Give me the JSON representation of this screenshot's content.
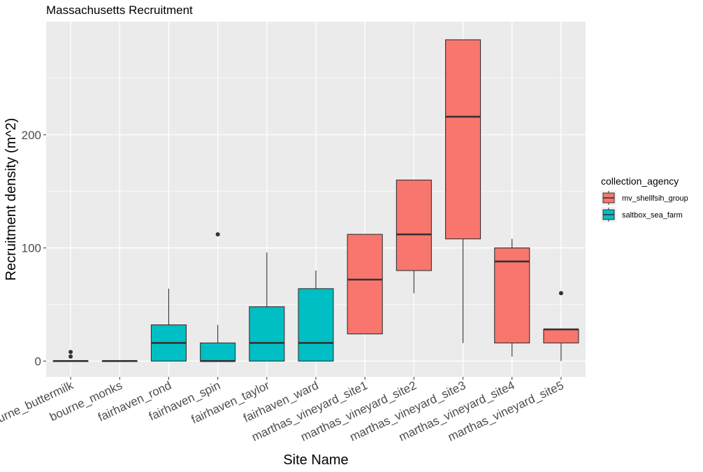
{
  "chart_data": {
    "type": "box",
    "title": "Massachusetts Recruitment",
    "xlabel": "Site Name",
    "ylabel": "Recruitment density (m^2)",
    "ylim": [
      -14,
      300
    ],
    "yticks": [
      0,
      100,
      200
    ],
    "grid": true,
    "legend": {
      "title": "collection_agency",
      "position": "right",
      "entries": [
        {
          "name": "mv_shellfsih_group",
          "color": "#F8766D"
        },
        {
          "name": "saltbox_sea_farm",
          "color": "#00BFC4"
        }
      ]
    },
    "categories": [
      "bourne_buttermilk",
      "bourne_monks",
      "fairhaven_rond",
      "fairhaven_spin",
      "fairhaven_taylor",
      "fairhaven_ward",
      "marthas_vineyard_site1",
      "marthas_vineyard_site2",
      "marthas_vineyard_site3",
      "marthas_vineyard_site4",
      "marthas_vineyard_site5"
    ],
    "boxes": [
      {
        "category": "bourne_buttermilk",
        "group": "saltbox_sea_farm",
        "min": 0,
        "q1": 0,
        "median": 0,
        "q3": 0,
        "max": 0,
        "outliers": [
          4,
          8
        ]
      },
      {
        "category": "bourne_monks",
        "group": "saltbox_sea_farm",
        "min": 0,
        "q1": 0,
        "median": 0,
        "q3": 0,
        "max": 0,
        "outliers": []
      },
      {
        "category": "fairhaven_rond",
        "group": "saltbox_sea_farm",
        "min": 0,
        "q1": 0,
        "median": 16,
        "q3": 32,
        "max": 64,
        "outliers": []
      },
      {
        "category": "fairhaven_spin",
        "group": "saltbox_sea_farm",
        "min": 0,
        "q1": 0,
        "median": 0,
        "q3": 16,
        "max": 32,
        "outliers": [
          112
        ]
      },
      {
        "category": "fairhaven_taylor",
        "group": "saltbox_sea_farm",
        "min": 0,
        "q1": 0,
        "median": 16,
        "q3": 48,
        "max": 96,
        "outliers": []
      },
      {
        "category": "fairhaven_ward",
        "group": "saltbox_sea_farm",
        "min": 0,
        "q1": 0,
        "median": 16,
        "q3": 64,
        "max": 80,
        "outliers": []
      },
      {
        "category": "marthas_vineyard_site1",
        "group": "mv_shellfsih_group",
        "min": 24,
        "q1": 24,
        "median": 72,
        "q3": 112,
        "max": 112,
        "outliers": []
      },
      {
        "category": "marthas_vineyard_site2",
        "group": "mv_shellfsih_group",
        "min": 60,
        "q1": 80,
        "median": 112,
        "q3": 160,
        "max": 160,
        "outliers": []
      },
      {
        "category": "marthas_vineyard_site3",
        "group": "mv_shellfsih_group",
        "min": 16,
        "q1": 108,
        "median": 216,
        "q3": 284,
        "max": 284,
        "outliers": []
      },
      {
        "category": "marthas_vineyard_site4",
        "group": "mv_shellfsih_group",
        "min": 4,
        "q1": 16,
        "median": 88,
        "q3": 100,
        "max": 108,
        "outliers": []
      },
      {
        "category": "marthas_vineyard_site5",
        "group": "mv_shellfsih_group",
        "min": 0,
        "q1": 16,
        "median": 28,
        "q3": 28,
        "max": 28,
        "outliers": [
          60
        ]
      }
    ]
  }
}
